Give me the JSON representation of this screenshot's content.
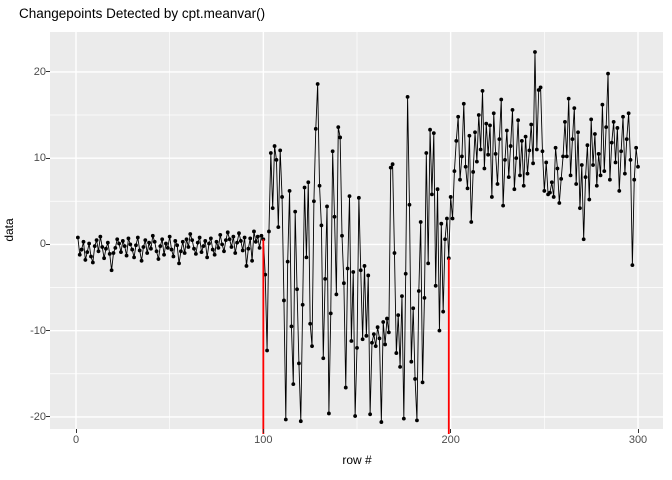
{
  "chart_data": {
    "type": "line",
    "title": "Changepoints Detected by cpt.meanvar()",
    "xlabel": "row #",
    "ylabel": "data",
    "x_ticks": [
      0,
      100,
      200,
      300
    ],
    "x_minor_ticks": [
      50,
      150,
      250
    ],
    "y_ticks": [
      20,
      10,
      0,
      -10,
      -20
    ],
    "y_minor_ticks": [
      15,
      5,
      -5,
      -15
    ],
    "xlim": [
      -14,
      313
    ],
    "ylim": [
      -22.8,
      24.6
    ],
    "grid": "white major and minor gridlines on gray panel",
    "legend": "none",
    "marker": "filled point",
    "x_start": 1,
    "changepoints": [
      100,
      199
    ],
    "segment_description": "rows 1-100 mean~0 low variance; rows 101-199 mean~0 high variance; rows 200-300 mean~10 moderate variance",
    "values": [
      0.8,
      -1.2,
      -0.6,
      0.3,
      -1.8,
      -0.9,
      0.1,
      -1.4,
      -2.1,
      -0.2,
      0.5,
      -0.8,
      0.9,
      -0.3,
      -1.6,
      -0.5,
      0.2,
      -1.1,
      -3.0,
      -1.0,
      -0.4,
      0.6,
      0.1,
      -0.9,
      0.4,
      -0.2,
      -1.3,
      0.7,
      0.0,
      -0.6,
      -1.5,
      -0.1,
      0.8,
      -0.7,
      -1.9,
      -0.3,
      0.5,
      -1.0,
      0.2,
      -0.5,
      1.0,
      0.3,
      -0.8,
      -1.7,
      -0.2,
      0.6,
      -1.2,
      0.1,
      -0.4,
      0.9,
      -0.6,
      -1.4,
      0.4,
      -0.1,
      -2.2,
      -0.8,
      0.3,
      -1.0,
      0.6,
      -0.3,
      1.2,
      0.5,
      -0.5,
      -1.1,
      0.2,
      0.8,
      -0.9,
      -0.2,
      0.4,
      -1.5,
      0.1,
      0.7,
      -0.6,
      -1.2,
      0.3,
      -0.4,
      1.1,
      0.0,
      -0.8,
      0.5,
      1.4,
      0.6,
      -0.3,
      0.9,
      -1.0,
      0.2,
      1.3,
      0.4,
      -0.7,
      0.8,
      -2.5,
      -0.5,
      0.7,
      -1.9,
      1.5,
      0.3,
      0.9,
      -0.4,
      1.0,
      0.6,
      -3.5,
      -12.3,
      1.5,
      10.6,
      4.2,
      11.4,
      9.8,
      2.0,
      10.9,
      5.5,
      -6.5,
      -20.3,
      -2.0,
      6.2,
      -9.5,
      -16.2,
      3.8,
      -5.2,
      -13.8,
      -20.5,
      -7.0,
      6.6,
      -1.5,
      7.2,
      -9.2,
      -11.8,
      5.0,
      13.4,
      18.6,
      6.8,
      2.2,
      -13.2,
      -4.0,
      4.4,
      -19.6,
      -8.0,
      10.8,
      3.2,
      -5.8,
      13.6,
      12.4,
      1.0,
      -4.5,
      -16.6,
      -2.8,
      5.6,
      -11.2,
      -3.2,
      -19.9,
      -12.0,
      5.4,
      -3.0,
      -11.0,
      -2.5,
      -10.6,
      -3.6,
      -19.7,
      -11.4,
      -10.4,
      -11.8,
      -9.6,
      -10.9,
      -20.6,
      -9.0,
      -11.6,
      -8.6,
      -10.2,
      8.9,
      9.3,
      -1.0,
      -12.6,
      -8.2,
      -14.2,
      -6.0,
      -20.2,
      -3.4,
      17.1,
      4.6,
      -13.6,
      -7.4,
      -15.6,
      -20.4,
      -5.4,
      2.6,
      -16.0,
      -6.2,
      10.6,
      -2.2,
      13.3,
      5.8,
      12.9,
      -4.8,
      6.4,
      -10.0,
      2.4,
      -7.8,
      0.6,
      3.0,
      -1.6,
      5.5,
      3.0,
      8.5,
      12.0,
      14.8,
      7.5,
      10.2,
      16.3,
      9.0,
      6.5,
      12.6,
      2.6,
      8.4,
      13.0,
      9.6,
      15.0,
      11.0,
      17.8,
      8.8,
      14.0,
      10.4,
      13.8,
      5.5,
      15.2,
      10.5,
      7.0,
      12.2,
      16.8,
      4.5,
      9.8,
      13.2,
      7.8,
      11.4,
      15.6,
      6.4,
      10.0,
      14.4,
      8.0,
      12.0,
      6.8,
      12.5,
      8.2,
      10.9,
      13.9,
      9.4,
      22.3,
      11.0,
      17.9,
      18.2,
      10.8,
      6.2,
      9.5,
      5.8,
      6.0,
      7.2,
      5.5,
      11.2,
      8.8,
      4.8,
      7.6,
      10.2,
      14.2,
      10.2,
      16.9,
      8.0,
      12.2,
      15.8,
      7.0,
      13.0,
      4.2,
      9.2,
      0.6,
      7.8,
      11.5,
      5.2,
      14.5,
      9.2,
      12.8,
      6.8,
      10.5,
      8.0,
      16.2,
      8.5,
      13.6,
      19.8,
      7.5,
      11.8,
      14.2,
      9.5,
      13.5,
      6.2,
      10.8,
      14.8,
      8.2,
      12.2,
      15.2,
      9.8,
      -2.4,
      7.5,
      11.2,
      9.0
    ]
  },
  "colors": {
    "panel_background": "#EBEBEB",
    "gridline": "#FFFFFF",
    "series": "#000000",
    "changepoint_line": "#FF0000",
    "tick_label": "#4D4D4D",
    "tick_mark": "#333333",
    "title_text": "#000000"
  }
}
